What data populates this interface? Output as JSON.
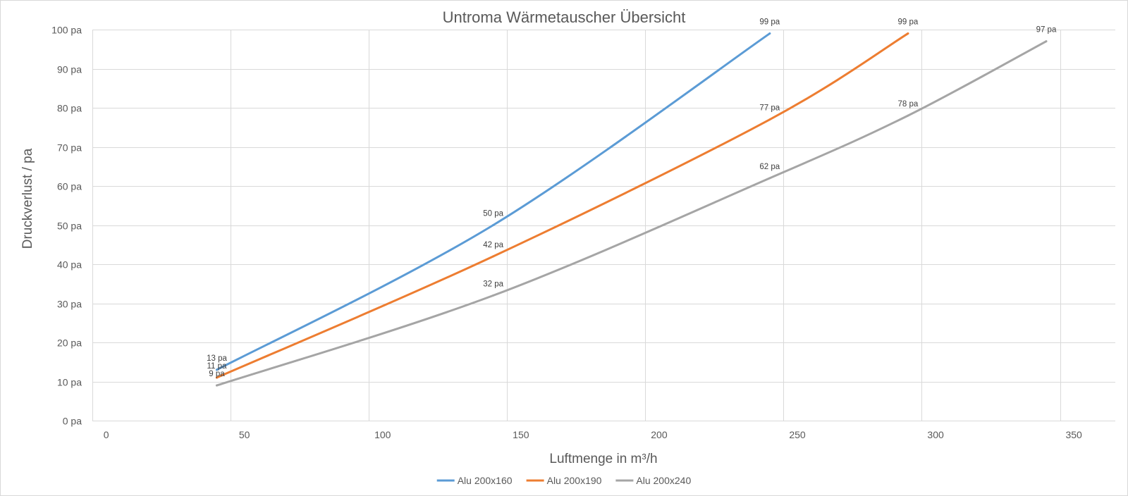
{
  "chart_data": {
    "type": "line",
    "title": "Untroma Wärmetauscher Übersicht",
    "xlabel": "Luftmenge in m³/h",
    "ylabel": "Druckverlust / pa",
    "xlim": [
      -5,
      365
    ],
    "ylim": [
      0,
      100
    ],
    "xticks": [
      0,
      50,
      100,
      150,
      200,
      250,
      300,
      350
    ],
    "xtick_labels": [
      "0",
      "50",
      "100",
      "150",
      "200",
      "250",
      "300",
      "350"
    ],
    "yticks": [
      0,
      10,
      20,
      30,
      40,
      50,
      60,
      70,
      80,
      90,
      100
    ],
    "ytick_labels": [
      "0 pa",
      "10 pa",
      "20 pa",
      "30 pa",
      "40 pa",
      "50 pa",
      "60 pa",
      "70 pa",
      "80 pa",
      "90 pa",
      "100 pa"
    ],
    "grid": true,
    "legend": "bottom",
    "smooth": true,
    "series": [
      {
        "name": "Alu 200x160",
        "color": "#5B9BD5",
        "x": [
          40,
          140,
          240
        ],
        "y": [
          13,
          50,
          99
        ],
        "data_labels": [
          "13 pa",
          "50 pa",
          "99 pa"
        ]
      },
      {
        "name": "Alu 200x190",
        "color": "#ED7D31",
        "x": [
          40,
          140,
          240,
          290
        ],
        "y": [
          11,
          42,
          77,
          99
        ],
        "data_labels": [
          "11 pa",
          "42 pa",
          "77 pa",
          "99 pa"
        ]
      },
      {
        "name": "Alu 200x240",
        "color": "#A5A5A5",
        "x": [
          40,
          140,
          240,
          290,
          340
        ],
        "y": [
          9,
          32,
          62,
          78,
          97
        ],
        "data_labels": [
          "9 pa",
          "32 pa",
          "62 pa",
          "78 pa",
          "97 pa"
        ]
      }
    ]
  }
}
